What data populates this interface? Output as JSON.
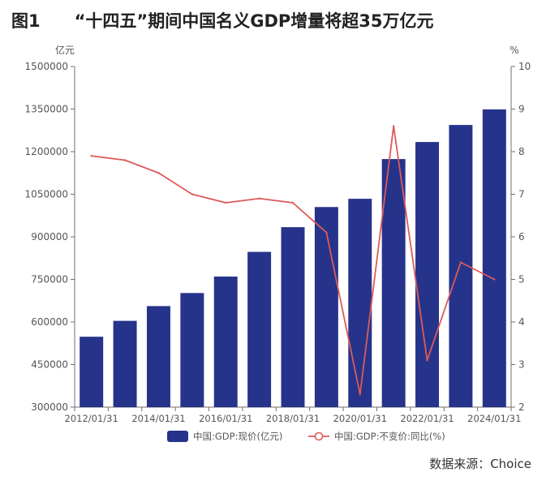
{
  "figure": {
    "number": "图1",
    "title": "“十四五”期间中国名义GDP增量将超35万亿元",
    "source": "数据来源：Choice"
  },
  "chart_data": {
    "type": "bar",
    "x": [
      "2012/01/31",
      "2013/01/31",
      "2014/01/31",
      "2015/01/31",
      "2016/01/31",
      "2017/01/31",
      "2018/01/31",
      "2019/01/31",
      "2020/01/31",
      "2021/01/31",
      "2022/01/31",
      "2023/01/31",
      "2024/01/31"
    ],
    "x_tick_labels": [
      "2012/01/31",
      "2014/01/31",
      "2016/01/31",
      "2018/01/31",
      "2020/01/31",
      "2022/01/31",
      "2024/01/31"
    ],
    "series": [
      {
        "name": "中国:GDP:现价(亿元)",
        "type": "bar",
        "axis": "left",
        "color": "#26338a",
        "values": [
          548000,
          604000,
          656000,
          702000,
          760000,
          847000,
          934000,
          1005000,
          1034000,
          1174000,
          1234000,
          1294000,
          1349000
        ]
      },
      {
        "name": "中国:GDP:不变价:同比(%)",
        "type": "line",
        "axis": "right",
        "color": "#dd5a5a",
        "values": [
          7.9,
          7.8,
          7.5,
          7.0,
          6.8,
          6.9,
          6.8,
          6.1,
          2.3,
          8.6,
          3.1,
          5.4,
          5.0
        ]
      }
    ],
    "y_left": {
      "unit": "亿元",
      "range": [
        300000,
        1500000
      ],
      "ticks": [
        "300000",
        "450000",
        "600000",
        "750000",
        "900000",
        "1050000",
        "1200000",
        "1350000",
        "1500000"
      ]
    },
    "y_right": {
      "unit": "%",
      "range": [
        2,
        10
      ],
      "ticks": [
        "2",
        "3",
        "4",
        "5",
        "6",
        "7",
        "8",
        "9",
        "10"
      ]
    },
    "grid": false,
    "legend_position": "bottom-center"
  }
}
